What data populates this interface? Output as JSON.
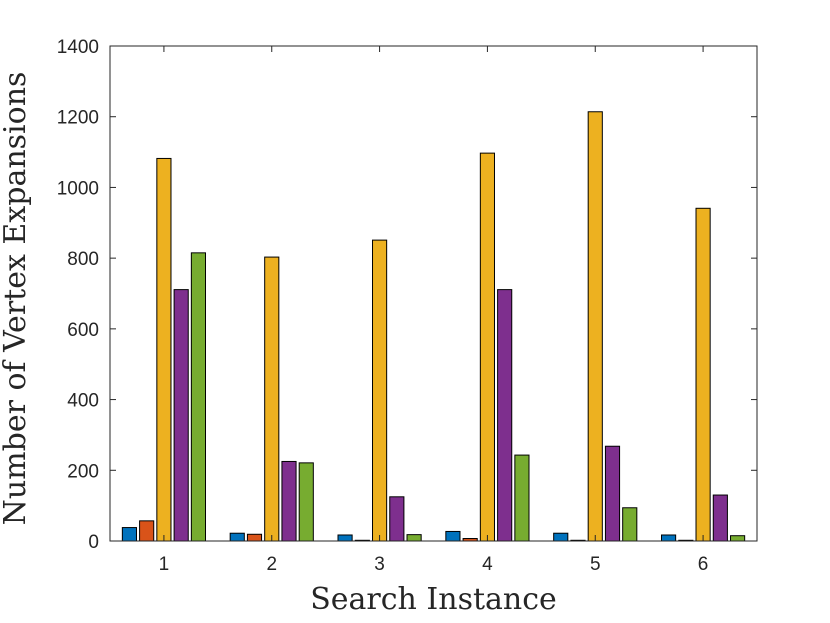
{
  "chart_data": {
    "type": "bar",
    "title": "",
    "xlabel": "Search Instance",
    "ylabel": "Number of Vertex Expansions",
    "categories": [
      "1",
      "2",
      "3",
      "4",
      "5",
      "6"
    ],
    "ylim": [
      0,
      1400
    ],
    "yticks": [
      0,
      200,
      400,
      600,
      800,
      1000,
      1200,
      1400
    ],
    "grid": false,
    "legend": "none",
    "series": [
      {
        "color": "#0072BD",
        "values": [
          38,
          22,
          17,
          27,
          22,
          17
        ]
      },
      {
        "color": "#D95319",
        "values": [
          57,
          19,
          2,
          7,
          2,
          2
        ]
      },
      {
        "color": "#EDB120",
        "values": [
          1082,
          803,
          851,
          1097,
          1214,
          941
        ]
      },
      {
        "color": "#7E2F8E",
        "values": [
          711,
          225,
          125,
          711,
          268,
          130
        ]
      },
      {
        "color": "#77AC30",
        "values": [
          815,
          221,
          18,
          243,
          94,
          15
        ]
      }
    ]
  }
}
